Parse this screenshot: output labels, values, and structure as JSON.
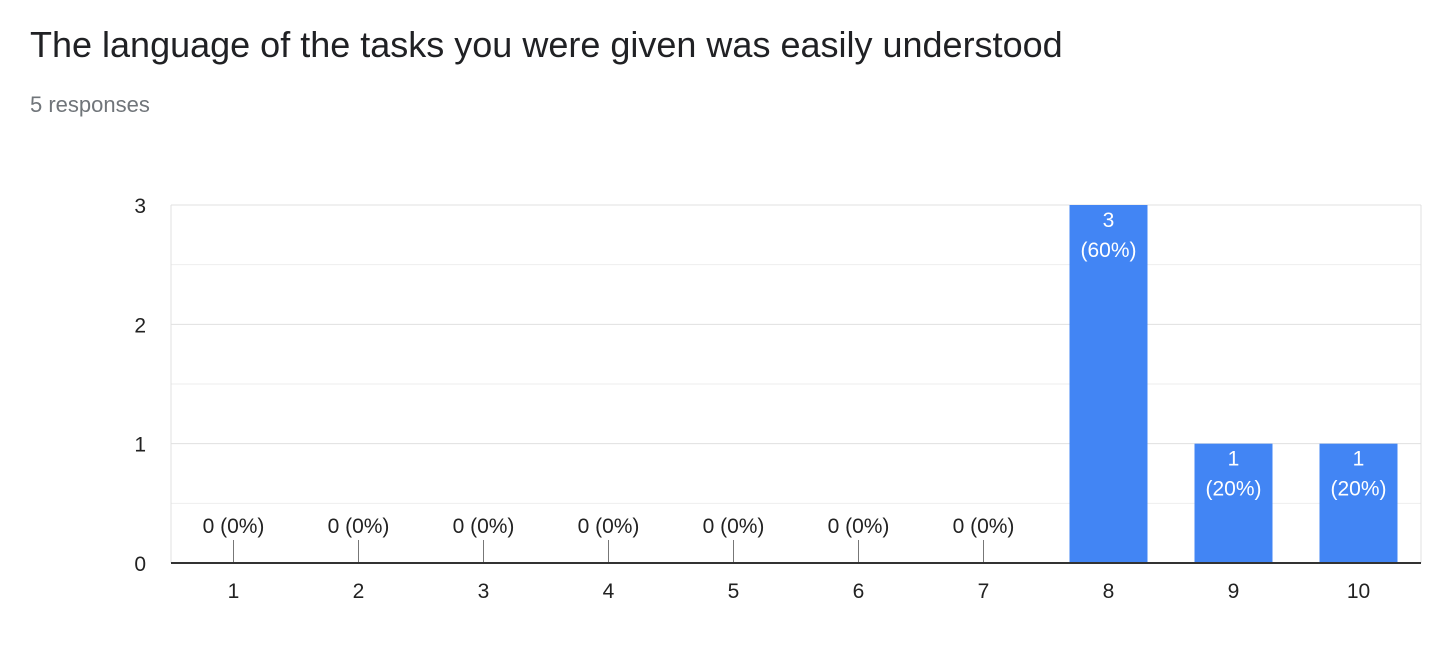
{
  "header": {
    "title": "The language of the tasks you were given was easily understood",
    "responses": "5 responses"
  },
  "colors": {
    "bar": "#4285f4",
    "grid": "#e0e0e0",
    "minor_grid": "#eeeeee",
    "axis": "#333333",
    "text": "#222222",
    "bar_label": "#ffffff"
  },
  "chart_data": {
    "type": "bar",
    "categories": [
      "1",
      "2",
      "3",
      "4",
      "5",
      "6",
      "7",
      "8",
      "9",
      "10"
    ],
    "values": [
      0,
      0,
      0,
      0,
      0,
      0,
      0,
      3,
      1,
      1
    ],
    "percents": [
      "0%",
      "0%",
      "0%",
      "0%",
      "0%",
      "0%",
      "0%",
      "60%",
      "20%",
      "20%"
    ],
    "data_labels": [
      "0 (0%)",
      "0 (0%)",
      "0 (0%)",
      "0 (0%)",
      "0 (0%)",
      "0 (0%)",
      "0 (0%)",
      "3\n(60%)",
      "1\n(20%)",
      "1\n(20%)"
    ],
    "ylim": [
      0,
      3
    ],
    "yticks": [
      "0",
      "1",
      "2",
      "3"
    ],
    "grid": true,
    "legend": "none"
  }
}
